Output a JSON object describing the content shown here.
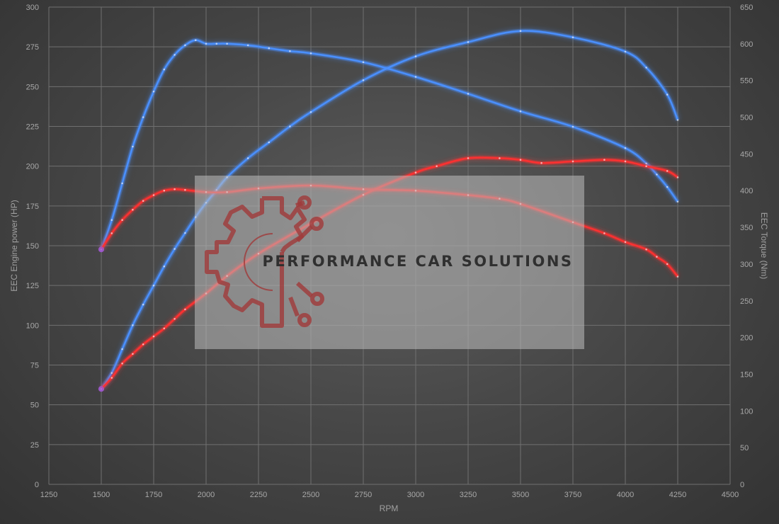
{
  "chart_data": {
    "type": "line",
    "xlabel": "RPM",
    "ylabel_left": "EEC Engine power (HP)",
    "ylabel_right": "EEC Torque (Nm)",
    "xlim": [
      1250,
      4500
    ],
    "ylim_left": [
      0,
      300
    ],
    "ylim_right": [
      0,
      650
    ],
    "x_ticks": [
      1250,
      1500,
      1750,
      2000,
      2250,
      2500,
      2750,
      3000,
      3250,
      3500,
      3750,
      4000,
      4250,
      4500
    ],
    "y_left_ticks": [
      0,
      25,
      50,
      75,
      100,
      125,
      150,
      175,
      200,
      225,
      250,
      275,
      300
    ],
    "y_right_ticks": [
      0,
      50,
      100,
      150,
      200,
      250,
      300,
      350,
      400,
      450,
      500,
      550,
      600,
      650
    ],
    "grid": true,
    "watermark": "PERFORMANCE CAR SOLUTIONS",
    "colors": {
      "tuned": "#4a90ff",
      "stock": "#ff3030",
      "start": "#9b59d0"
    },
    "series": [
      {
        "color": "tuned",
        "axis": "left",
        "x": [
          1500,
          1550,
          1600,
          1650,
          1700,
          1750,
          1800,
          1850,
          1900,
          1950,
          2000,
          2050,
          2100,
          2200,
          2300,
          2400,
          2500,
          2750,
          3000,
          3250,
          3500,
          3750,
          4000,
          4100,
          4200,
          4250
        ],
        "y": [
          60,
          70,
          85,
          100,
          113,
          125,
          137,
          148,
          158,
          168,
          177,
          185,
          193,
          205,
          215,
          225,
          234,
          254,
          269,
          278,
          285,
          281,
          272,
          262,
          245,
          229
        ]
      },
      {
        "color": "tuned",
        "axis": "right",
        "x": [
          1500,
          1550,
          1600,
          1650,
          1700,
          1750,
          1800,
          1850,
          1900,
          1950,
          2000,
          2050,
          2100,
          2200,
          2300,
          2400,
          2500,
          2750,
          3000,
          3250,
          3500,
          3750,
          4000,
          4100,
          4150,
          4200,
          4250
        ],
        "y": [
          320,
          360,
          410,
          460,
          500,
          535,
          565,
          585,
          598,
          605,
          600,
          600,
          600,
          598,
          594,
          590,
          587,
          575,
          555,
          532,
          508,
          487,
          458,
          437,
          422,
          405,
          385
        ]
      },
      {
        "color": "stock",
        "axis": "left",
        "x": [
          1500,
          1550,
          1600,
          1650,
          1700,
          1750,
          1800,
          1850,
          1900,
          2000,
          2100,
          2250,
          2500,
          2750,
          3000,
          3100,
          3250,
          3400,
          3500,
          3600,
          3750,
          3900,
          4000,
          4100,
          4200,
          4250
        ],
        "y": [
          60,
          67,
          76,
          82,
          88,
          93,
          98,
          104,
          110,
          120,
          131,
          145,
          164,
          182,
          196,
          200,
          205,
          205,
          204,
          202,
          203,
          204,
          203,
          200,
          197,
          193
        ]
      },
      {
        "color": "stock",
        "axis": "right",
        "x": [
          1500,
          1550,
          1600,
          1650,
          1700,
          1750,
          1800,
          1850,
          1900,
          2000,
          2100,
          2250,
          2500,
          2750,
          3000,
          3250,
          3400,
          3500,
          3750,
          3900,
          4000,
          4100,
          4150,
          4200,
          4250
        ],
        "y": [
          320,
          342,
          360,
          374,
          386,
          394,
          400,
          402,
          401,
          398,
          398,
          403,
          407,
          402,
          400,
          394,
          389,
          382,
          357,
          342,
          330,
          320,
          310,
          300,
          283
        ]
      }
    ]
  }
}
